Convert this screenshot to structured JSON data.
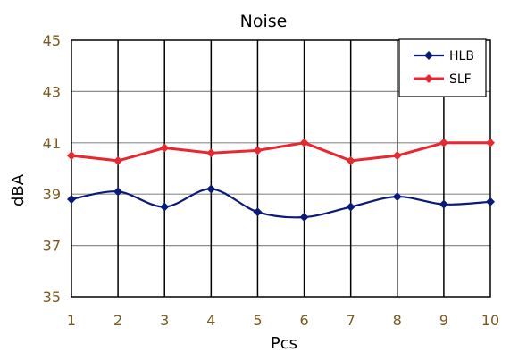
{
  "chart_data": {
    "type": "line",
    "title": "Noise",
    "xlabel": "Pcs",
    "ylabel": "dBA",
    "x": [
      1,
      2,
      3,
      4,
      5,
      6,
      7,
      8,
      9,
      10
    ],
    "xlim": [
      1,
      10
    ],
    "ylim": [
      35,
      45
    ],
    "yticks": [
      35,
      37,
      39,
      41,
      43,
      45
    ],
    "x_gridlines": true,
    "y_gridlines": true,
    "legend_position": "top-right",
    "series": [
      {
        "name": "HLB",
        "color": "#0a1a7a",
        "marker": "diamond",
        "smooth": true,
        "values": [
          38.8,
          39.1,
          38.5,
          39.2,
          38.3,
          38.1,
          38.5,
          38.9,
          38.6,
          38.7
        ]
      },
      {
        "name": "SLF",
        "color": "#e8282e",
        "marker": "diamond",
        "smooth": false,
        "values": [
          40.5,
          40.3,
          40.8,
          40.6,
          40.7,
          41.0,
          40.3,
          40.5,
          41.0,
          41.0
        ]
      }
    ],
    "tick_label_color": "#7a5a1e"
  }
}
